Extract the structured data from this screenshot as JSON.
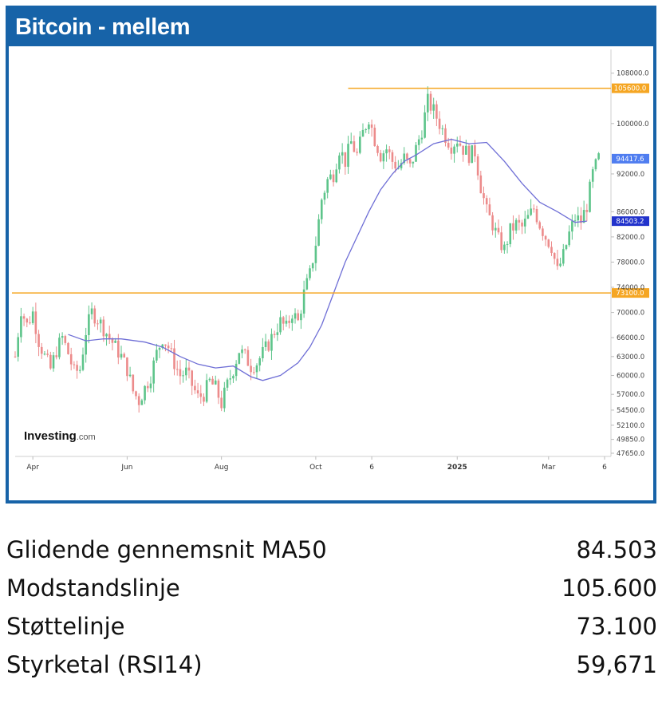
{
  "title": "Bitcoin - mellem",
  "brand": {
    "name": "Investing",
    "suffix": ".com"
  },
  "colors": {
    "header": "#1763a8",
    "level_line": "#f5a623",
    "ma_line": "#6f6fd6",
    "bull": "#5dc48a",
    "bear": "#ec8b8b",
    "price_tag": "#4f7df0",
    "ma_tag": "#2233cc"
  },
  "chart_data": {
    "type": "candlestick",
    "title": "Bitcoin - mellem",
    "xlabel": "",
    "ylabel": "",
    "ylim": [
      47650,
      111000
    ],
    "y_ticks": [
      {
        "value": 108000,
        "label": "108000.0"
      },
      {
        "value": 100000,
        "label": "100000.0"
      },
      {
        "value": 92000,
        "label": "92000.0"
      },
      {
        "value": 86000,
        "label": "86000.0"
      },
      {
        "value": 82000,
        "label": "82000.0"
      },
      {
        "value": 78000,
        "label": "78000.0"
      },
      {
        "value": 74000,
        "label": "74000.0"
      },
      {
        "value": 70000,
        "label": "70000.0"
      },
      {
        "value": 66000,
        "label": "66000.0"
      },
      {
        "value": 63000,
        "label": "63000.0"
      },
      {
        "value": 60000,
        "label": "60000.0"
      },
      {
        "value": 57000,
        "label": "57000.0"
      },
      {
        "value": 54500,
        "label": "54500.0"
      },
      {
        "value": 52100,
        "label": "52100.0"
      },
      {
        "value": 49850,
        "label": "49850.0"
      },
      {
        "value": 47650,
        "label": "47650.0"
      }
    ],
    "x_ticks": [
      "Apr",
      "Jun",
      "Aug",
      "Oct",
      "6",
      "2025",
      "Mar",
      "6"
    ],
    "close_path": [
      [
        0,
        63000
      ],
      [
        2,
        70500
      ],
      [
        4,
        68000
      ],
      [
        6,
        70000
      ],
      [
        8,
        65500
      ],
      [
        10,
        63000
      ],
      [
        12,
        61000
      ],
      [
        14,
        64000
      ],
      [
        16,
        66000
      ],
      [
        18,
        63500
      ],
      [
        20,
        60500
      ],
      [
        22,
        61000
      ],
      [
        24,
        67000
      ],
      [
        26,
        70000
      ],
      [
        28,
        69000
      ],
      [
        30,
        67500
      ],
      [
        32,
        66000
      ],
      [
        34,
        64500
      ],
      [
        36,
        63000
      ],
      [
        38,
        61000
      ],
      [
        40,
        57500
      ],
      [
        42,
        56000
      ],
      [
        44,
        58000
      ],
      [
        46,
        60000
      ],
      [
        48,
        63500
      ],
      [
        50,
        66000
      ],
      [
        52,
        64500
      ],
      [
        54,
        62000
      ],
      [
        56,
        60000
      ],
      [
        58,
        60500
      ],
      [
        60,
        58500
      ],
      [
        62,
        56500
      ],
      [
        64,
        57000
      ],
      [
        66,
        59000
      ],
      [
        68,
        58000
      ],
      [
        70,
        55500
      ],
      [
        72,
        58500
      ],
      [
        74,
        61000
      ],
      [
        76,
        64000
      ],
      [
        78,
        63000
      ],
      [
        80,
        61500
      ],
      [
        82,
        62000
      ],
      [
        84,
        63500
      ],
      [
        86,
        65000
      ],
      [
        88,
        67000
      ],
      [
        90,
        68500
      ],
      [
        92,
        67500
      ],
      [
        94,
        70000
      ],
      [
        96,
        68500
      ],
      [
        98,
        73000
      ],
      [
        100,
        76000
      ],
      [
        102,
        81000
      ],
      [
        104,
        88000
      ],
      [
        106,
        91000
      ],
      [
        108,
        92000
      ],
      [
        110,
        96000
      ],
      [
        112,
        94000
      ],
      [
        114,
        97000
      ],
      [
        116,
        95000
      ],
      [
        118,
        98500
      ],
      [
        120,
        101000
      ],
      [
        122,
        97500
      ],
      [
        124,
        95000
      ],
      [
        126,
        96000
      ],
      [
        128,
        94000
      ],
      [
        130,
        93000
      ],
      [
        132,
        94500
      ],
      [
        134,
        93000
      ],
      [
        136,
        96000
      ],
      [
        138,
        99000
      ],
      [
        140,
        103500
      ],
      [
        142,
        102000
      ],
      [
        144,
        100000
      ],
      [
        146,
        98000
      ],
      [
        148,
        96500
      ],
      [
        150,
        97500
      ],
      [
        152,
        96000
      ],
      [
        154,
        95000
      ],
      [
        156,
        95500
      ],
      [
        158,
        90000
      ],
      [
        160,
        86000
      ],
      [
        162,
        84000
      ],
      [
        164,
        81500
      ],
      [
        166,
        80000
      ],
      [
        168,
        83000
      ],
      [
        170,
        84000
      ],
      [
        172,
        83500
      ],
      [
        174,
        85000
      ],
      [
        176,
        86500
      ],
      [
        178,
        84000
      ],
      [
        180,
        82000
      ],
      [
        182,
        80500
      ],
      [
        184,
        76500
      ],
      [
        186,
        79000
      ],
      [
        188,
        82500
      ],
      [
        190,
        85000
      ],
      [
        192,
        84500
      ],
      [
        194,
        87000
      ],
      [
        196,
        92000
      ],
      [
        198,
        94500
      ]
    ],
    "series": [
      {
        "name": "MA50",
        "points": [
          [
            18,
            66500
          ],
          [
            24,
            65500
          ],
          [
            30,
            65800
          ],
          [
            36,
            65800
          ],
          [
            44,
            65300
          ],
          [
            50,
            64500
          ],
          [
            56,
            63000
          ],
          [
            62,
            61800
          ],
          [
            68,
            61200
          ],
          [
            74,
            61500
          ],
          [
            80,
            59800
          ],
          [
            84,
            59200
          ],
          [
            90,
            60000
          ],
          [
            96,
            62000
          ],
          [
            100,
            64500
          ],
          [
            104,
            68000
          ],
          [
            108,
            73000
          ],
          [
            112,
            78000
          ],
          [
            116,
            82000
          ],
          [
            120,
            86000
          ],
          [
            124,
            89500
          ],
          [
            128,
            92000
          ],
          [
            132,
            94000
          ],
          [
            136,
            95000
          ],
          [
            142,
            96800
          ],
          [
            148,
            97500
          ],
          [
            154,
            96800
          ],
          [
            160,
            97000
          ],
          [
            166,
            94000
          ],
          [
            172,
            90500
          ],
          [
            178,
            87500
          ],
          [
            184,
            86000
          ],
          [
            190,
            84300
          ],
          [
            194,
            84503
          ]
        ]
      }
    ],
    "levels": [
      {
        "name": "Modstandslinje",
        "value": 105600,
        "label": "105600.0"
      },
      {
        "name": "Støttelinje",
        "value": 73100,
        "label": "73100.0"
      }
    ],
    "price_tags": [
      {
        "value": 94417.6,
        "label": "94417.6",
        "kind": "price"
      },
      {
        "value": 84503.2,
        "label": "84503.2",
        "kind": "ma"
      }
    ]
  },
  "stats": [
    {
      "label": "Glidende gennemsnit MA50",
      "value": "84.503"
    },
    {
      "label": "Modstandslinje",
      "value": "105.600"
    },
    {
      "label": "Støttelinje",
      "value": "73.100"
    },
    {
      "label": "Styrketal (RSI14)",
      "value": "59,671"
    }
  ]
}
